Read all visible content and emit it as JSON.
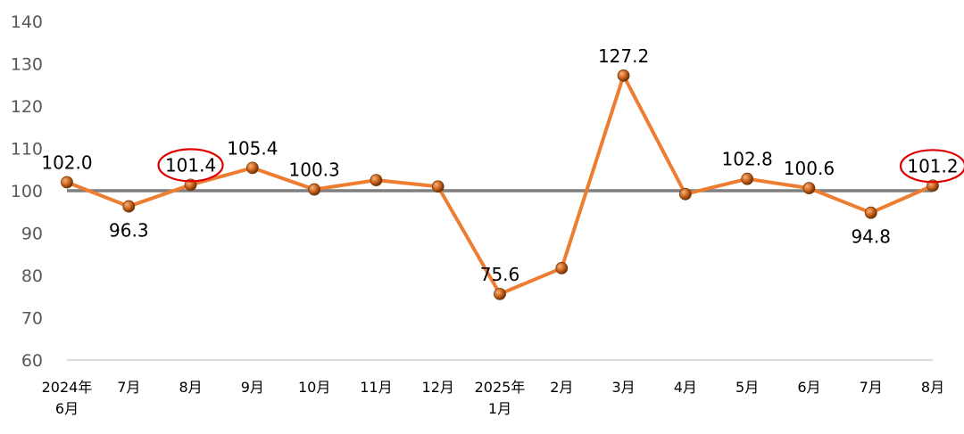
{
  "chart_data": {
    "type": "line",
    "categories": [
      [
        "2024年",
        "6月"
      ],
      [
        "7月"
      ],
      [
        "8月"
      ],
      [
        "9月"
      ],
      [
        "10月"
      ],
      [
        "11月"
      ],
      [
        "12月"
      ],
      [
        "2025年",
        "1月"
      ],
      [
        "2月"
      ],
      [
        "3月"
      ],
      [
        "4月"
      ],
      [
        "5月"
      ],
      [
        "6月"
      ],
      [
        "7月"
      ],
      [
        "8月"
      ]
    ],
    "series": [
      {
        "values": [
          102.0,
          96.3,
          101.4,
          105.4,
          100.3,
          102.5,
          101.0,
          75.6,
          81.7,
          127.2,
          99.2,
          102.8,
          100.6,
          94.8,
          101.2
        ],
        "color": "#ed7d31"
      }
    ],
    "data_labels": [
      {
        "index": 0,
        "text": "102.0",
        "position": "above",
        "circled": false
      },
      {
        "index": 1,
        "text": "96.3",
        "position": "below",
        "circled": false
      },
      {
        "index": 2,
        "text": "101.4",
        "position": "above",
        "circled": true
      },
      {
        "index": 3,
        "text": "105.4",
        "position": "above",
        "circled": false
      },
      {
        "index": 4,
        "text": "100.3",
        "position": "above",
        "circled": false
      },
      {
        "index": 7,
        "text": "75.6",
        "position": "above",
        "circled": false
      },
      {
        "index": 9,
        "text": "127.2",
        "position": "above",
        "circled": false
      },
      {
        "index": 11,
        "text": "102.8",
        "position": "above",
        "circled": false
      },
      {
        "index": 12,
        "text": "100.6",
        "position": "above",
        "circled": false
      },
      {
        "index": 13,
        "text": "94.8",
        "position": "below",
        "circled": false
      },
      {
        "index": 14,
        "text": "101.2",
        "position": "above",
        "circled": true
      }
    ],
    "reference_line": {
      "value": 100,
      "color": "#7f7f7f"
    },
    "ylim": [
      60,
      140
    ],
    "yticks": [
      60,
      70,
      80,
      90,
      100,
      110,
      120,
      130,
      140
    ],
    "grid": false,
    "legend": "none",
    "highlight_color": "#e00000",
    "title": "",
    "xlabel": "",
    "ylabel": ""
  }
}
